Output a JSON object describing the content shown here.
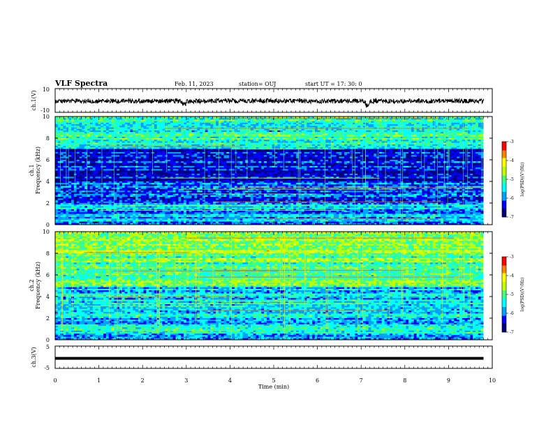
{
  "header": {
    "title": "VLF Spectra",
    "date": "Feb. 11, 2023",
    "station": "station= OUJ",
    "start": "start  UT  =   17: 30: 0"
  },
  "chart_data": [
    {
      "type": "line",
      "panel": "ch1-waveform",
      "ylabel": "ch.1(V)",
      "ylim": [
        -10,
        10
      ],
      "y_ticklabels": [
        "10",
        "-10"
      ],
      "x": [
        0,
        1,
        2,
        2.9,
        3,
        4,
        5,
        6,
        7,
        7.1,
        7.2,
        8,
        9,
        9.8
      ],
      "y": [
        -0.5,
        -0.4,
        -0.5,
        -3.0,
        -0.5,
        -0.4,
        -0.5,
        -0.5,
        -0.5,
        -4.0,
        -0.6,
        -0.5,
        -0.5,
        -0.5
      ],
      "trace_band_v": [
        -2.5,
        1.5
      ],
      "xlim": [
        0,
        10
      ]
    },
    {
      "type": "heatmap",
      "panel": "ch1-spectrogram",
      "ylabel": "ch.1",
      "ylabel2": "Frequency (kHz)",
      "ylim": [
        0,
        10
      ],
      "y_ticklabels": [
        "0",
        "2",
        "4",
        "6",
        "8",
        "10"
      ],
      "xlim": [
        0,
        10
      ],
      "colorbar": {
        "label": "log(PSD)(V²/Hz)",
        "range": [
          -7,
          -3
        ],
        "ticklabels": [
          "-3",
          "-4",
          "-5",
          "-6",
          "-7"
        ]
      },
      "dominant_levels": [
        {
          "freq_range_khz": [
            0,
            2
          ],
          "log_psd": -5.8
        },
        {
          "freq_range_khz": [
            2,
            4
          ],
          "log_psd": -6.2
        },
        {
          "freq_range_khz": [
            4,
            7
          ],
          "log_psd": -6.4
        },
        {
          "freq_range_khz": [
            7,
            10
          ],
          "log_psd": -5.3
        }
      ]
    },
    {
      "type": "heatmap",
      "panel": "ch2-spectrogram",
      "ylabel": "ch.2",
      "ylabel2": "Frequency (kHz)",
      "ylim": [
        0,
        10
      ],
      "y_ticklabels": [
        "0",
        "2",
        "4",
        "6",
        "8",
        "10"
      ],
      "xlim": [
        0,
        10
      ],
      "colorbar": {
        "label": "log(PSD)(V²/Hz)",
        "range": [
          -7,
          -3
        ],
        "ticklabels": [
          "-3",
          "-4",
          "-5",
          "-6",
          "-7"
        ]
      },
      "dominant_levels": [
        {
          "freq_range_khz": [
            0,
            2
          ],
          "log_psd": -5.6
        },
        {
          "freq_range_khz": [
            2,
            5
          ],
          "log_psd": -5.6
        },
        {
          "freq_range_khz": [
            5,
            8
          ],
          "log_psd": -5.0
        },
        {
          "freq_range_khz": [
            8,
            10
          ],
          "log_psd": -4.6
        }
      ]
    },
    {
      "type": "line",
      "panel": "ch3-waveform",
      "ylabel": "ch.3(V)",
      "ylim": [
        -5,
        5
      ],
      "y_ticklabels": [
        "5",
        "-5"
      ],
      "x": [
        0,
        9.8
      ],
      "y": [
        -0.5,
        -0.5
      ],
      "xlabel": "Time (min)",
      "x_ticklabels": [
        "0",
        "1",
        "2",
        "3",
        "4",
        "5",
        "6",
        "7",
        "8",
        "9",
        "10"
      ],
      "xlim": [
        0,
        10
      ]
    }
  ],
  "colors": {
    "colormap": [
      "#00007f",
      "#0000ff",
      "#00a0ff",
      "#00ffff",
      "#40ff80",
      "#c0ff00",
      "#ffff00",
      "#ff8000",
      "#ff0000"
    ]
  }
}
